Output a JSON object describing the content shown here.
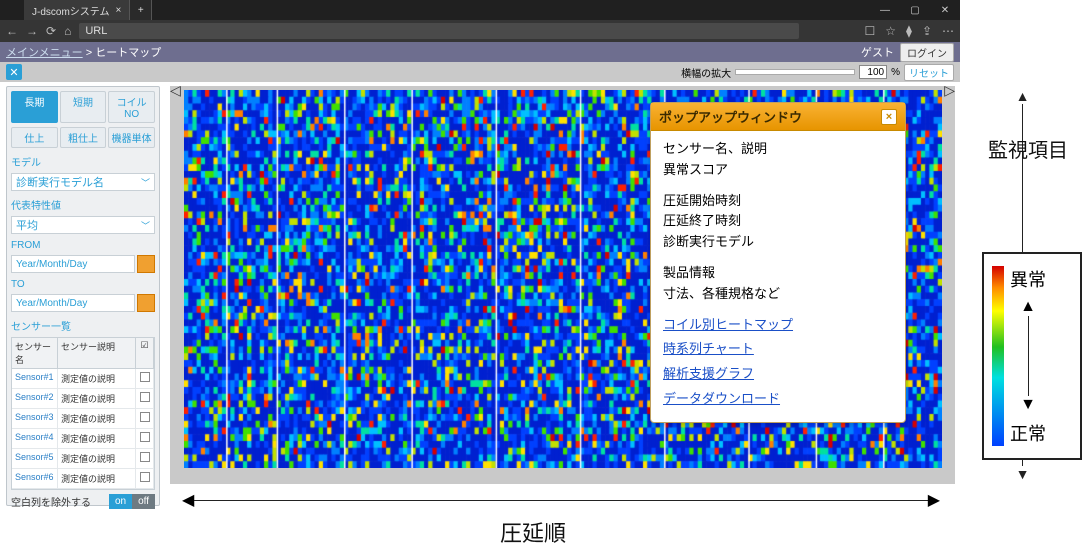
{
  "browser": {
    "tab_title": "J-dscomシステム",
    "url_text": "URL",
    "win_min": "—",
    "win_max": "▢",
    "win_close": "✕"
  },
  "header": {
    "breadcrumb_main": "メインメニュー",
    "breadcrumb_sep": " > ",
    "breadcrumb_current": "ヒートマップ",
    "guest": "ゲスト",
    "login": "ログイン"
  },
  "toolbar": {
    "close_x": "✕",
    "zoom_label": "横幅の拡大",
    "zoom_value": "100",
    "zoom_unit": "%",
    "reset": "リセット"
  },
  "sidebar": {
    "row1": {
      "long": "長期",
      "short": "短期",
      "coil": "コイルNO"
    },
    "row2": {
      "a": "仕上",
      "b": "粗仕上",
      "c": "機器単体"
    },
    "model_label": "モデル",
    "model_value": "診断実行モデル名",
    "repr_label": "代表特性値",
    "repr_value": "平均",
    "from_label": "FROM",
    "to_label": "TO",
    "date_placeholder": "Year/Month/Day",
    "sensor_list_label": "センサー一覧",
    "sensor_head_name": "センサー名",
    "sensor_head_desc": "センサー説明",
    "sensors": [
      {
        "name": "Sensor#1",
        "desc": "測定値の説明"
      },
      {
        "name": "Sensor#2",
        "desc": "測定値の説明"
      },
      {
        "name": "Sensor#3",
        "desc": "測定値の説明"
      },
      {
        "name": "Sensor#4",
        "desc": "測定値の説明"
      },
      {
        "name": "Sensor#5",
        "desc": "測定値の説明"
      },
      {
        "name": "Sensor#6",
        "desc": "測定値の説明"
      }
    ],
    "exclude_blank": "空白列を除外する",
    "on": "on",
    "off": "off"
  },
  "heatmap": {
    "type": "heatmap",
    "rows": 56,
    "cols": 180,
    "base_color": "#0020d0",
    "palette": [
      "#0020d0",
      "#0040ff",
      "#0080ff",
      "#00c0ff",
      "#00e0a0",
      "#40e000",
      "#c0e000",
      "#ffe000",
      "#ff8000",
      "#ff2000",
      "#d40000"
    ],
    "palette_weights": [
      45,
      18,
      10,
      6,
      5,
      4,
      4,
      3,
      2,
      2,
      1
    ],
    "background_color": "#c9c9c9",
    "vline_color": "#ffffff",
    "vline_positions": [
      10,
      22,
      38,
      54,
      74,
      94,
      114,
      134,
      150,
      166
    ],
    "hot_band_rows": [
      54,
      55
    ],
    "random_seed": 424242
  },
  "popup": {
    "title": "ポップアップウィンドウ",
    "close": "×",
    "line1": "センサー名、説明",
    "line2": "異常スコア",
    "line3": "圧延開始時刻",
    "line4": "圧延終了時刻",
    "line5": "診断実行モデル",
    "line6": "製品情報",
    "line7": "寸法、各種規格など",
    "link1": "コイル別ヒートマップ",
    "link2": "時系列チャート",
    "link3": "解析支援グラフ",
    "link4": "データダウンロード"
  },
  "outside": {
    "right_label": "監視項目",
    "bottom_label": "圧延順"
  },
  "legend": {
    "top": "異常",
    "bottom": "正常"
  }
}
